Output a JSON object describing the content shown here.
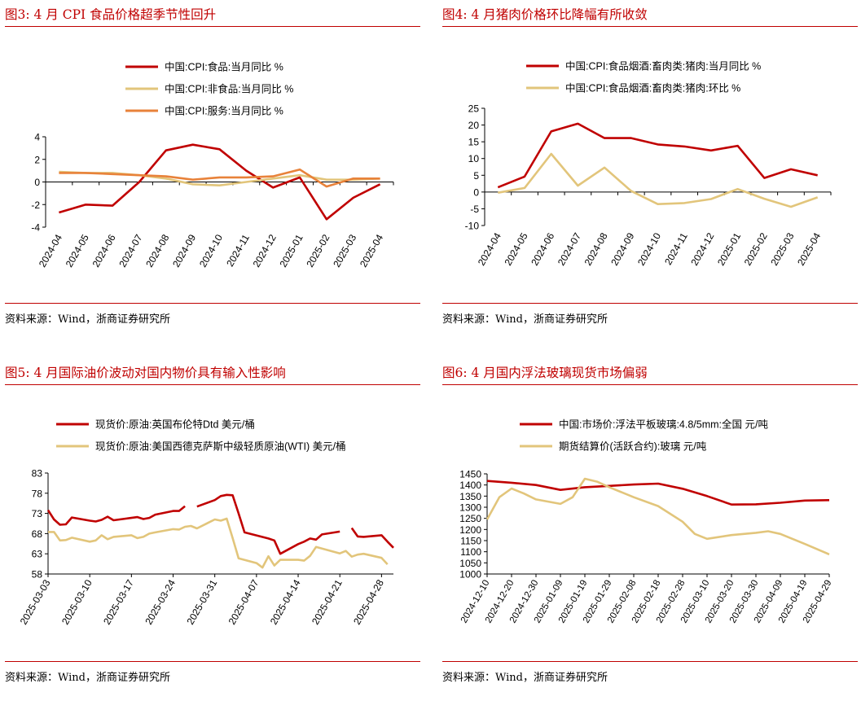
{
  "source_text": "资料来源：Wind，浙商证券研究所",
  "colors": {
    "accent_red": "#C00000",
    "line_red": "#C00000",
    "line_tan": "#E2C57B",
    "line_orange": "#E8823A"
  },
  "chart_data": [
    {
      "type": "line",
      "title": "图3:   4 月 CPI 食品价格超季节性回升",
      "categories": [
        "2024-04",
        "2024-05",
        "2024-06",
        "2024-07",
        "2024-08",
        "2024-09",
        "2024-10",
        "2024-11",
        "2024-12",
        "2025-01",
        "2025-02",
        "2025-03",
        "2025-04"
      ],
      "series": [
        {
          "name": "中国:CPI:食品:当月同比 %",
          "color": "#C00000",
          "values": [
            -2.7,
            -2.0,
            -2.1,
            0.0,
            2.8,
            3.3,
            2.9,
            1.0,
            -0.5,
            0.4,
            -3.3,
            -1.4,
            -0.2
          ]
        },
        {
          "name": "中国:CPI:非食品:当月同比 %",
          "color": "#E2C57B",
          "values": [
            0.9,
            0.8,
            0.8,
            0.6,
            0.3,
            -0.2,
            -0.3,
            0.0,
            0.3,
            0.6,
            0.2,
            0.2,
            0.3
          ]
        },
        {
          "name": "中国:CPI:服务:当月同比 %",
          "color": "#E8823A",
          "values": [
            0.8,
            0.8,
            0.7,
            0.6,
            0.5,
            0.2,
            0.4,
            0.4,
            0.5,
            1.1,
            -0.4,
            0.3,
            0.3
          ]
        }
      ],
      "ylim": [
        -4,
        4
      ],
      "yticks": [
        -4,
        -2,
        0,
        2,
        4
      ]
    },
    {
      "type": "line",
      "title": "图4:   4 月猪肉价格环比降幅有所收敛",
      "categories": [
        "2024-04",
        "2024-05",
        "2024-06",
        "2024-07",
        "2024-08",
        "2024-09",
        "2024-10",
        "2024-11",
        "2024-12",
        "2025-01",
        "2025-02",
        "2025-03",
        "2025-04"
      ],
      "series": [
        {
          "name": "中国:CPI:食品烟酒:畜肉类:猪肉:当月同比 %",
          "color": "#C00000",
          "values": [
            1.4,
            4.6,
            18.1,
            20.4,
            16.1,
            16.1,
            14.2,
            13.6,
            12.4,
            13.8,
            4.2,
            6.8,
            5.0
          ]
        },
        {
          "name": "中国:CPI:食品烟酒:畜肉类:猪肉:环比 %",
          "color": "#E2C57B",
          "values": [
            -0.2,
            1.2,
            11.4,
            1.9,
            7.3,
            0.3,
            -3.6,
            -3.3,
            -2.1,
            0.9,
            -2.0,
            -4.4,
            -1.6
          ]
        }
      ],
      "ylim": [
        -10,
        25
      ],
      "yticks": [
        -10,
        -5,
        0,
        5,
        10,
        15,
        20,
        25
      ]
    },
    {
      "type": "line",
      "title": "图5:   4 月国际油价波动对国内物价具有输入性影响",
      "x_tick_labels": [
        "2025-03-03",
        "2025-03-10",
        "2025-03-17",
        "2025-03-24",
        "2025-03-31",
        "2025-04-07",
        "2025-04-14",
        "2025-04-21",
        "2025-04-28"
      ],
      "x_start": "2025-03-03",
      "x_end": "2025-04-30",
      "series": [
        {
          "name": "现货价:原油:英国布伦特Dtd 美元/桶",
          "color": "#C00000",
          "segments": [
            [
              [
                "2025-03-03",
                73.8
              ],
              [
                "2025-03-04",
                71.5
              ],
              [
                "2025-03-05",
                70.2
              ],
              [
                "2025-03-06",
                70.3
              ],
              [
                "2025-03-07",
                72.0
              ],
              [
                "2025-03-10",
                71.2
              ],
              [
                "2025-03-11",
                71.0
              ],
              [
                "2025-03-12",
                71.4
              ],
              [
                "2025-03-13",
                72.2
              ],
              [
                "2025-03-14",
                71.3
              ],
              [
                "2025-03-17",
                71.9
              ],
              [
                "2025-03-18",
                72.1
              ],
              [
                "2025-03-19",
                71.6
              ],
              [
                "2025-03-20",
                71.9
              ],
              [
                "2025-03-21",
                72.7
              ],
              [
                "2025-03-24",
                73.6
              ],
              [
                "2025-03-25",
                73.6
              ],
              [
                "2025-03-26",
                74.8
              ]
            ],
            [
              [
                "2025-03-28",
                74.7
              ],
              [
                "2025-03-31",
                76.3
              ],
              [
                "2025-04-01",
                77.3
              ],
              [
                "2025-04-02",
                77.6
              ],
              [
                "2025-04-03",
                77.5
              ],
              [
                "2025-04-04",
                73.0
              ],
              [
                "2025-04-05",
                68.3
              ],
              [
                "2025-04-09",
                66.8
              ],
              [
                "2025-04-10",
                66.3
              ],
              [
                "2025-04-11",
                63.0
              ],
              [
                "2025-04-14",
                65.4
              ],
              [
                "2025-04-15",
                66.0
              ],
              [
                "2025-04-16",
                66.8
              ],
              [
                "2025-04-17",
                66.5
              ],
              [
                "2025-04-18",
                67.8
              ],
              [
                "2025-04-21",
                68.5
              ]
            ],
            [
              [
                "2025-04-23",
                69.4
              ],
              [
                "2025-04-24",
                67.3
              ],
              [
                "2025-04-25",
                67.2
              ],
              [
                "2025-04-28",
                67.6
              ],
              [
                "2025-04-29",
                66.0
              ],
              [
                "2025-04-30",
                64.5
              ]
            ]
          ]
        },
        {
          "name": "现货价:原油:美国西德克萨斯中级轻质原油(WTI) 美元/桶",
          "color": "#E2C57B",
          "segments": [
            [
              [
                "2025-03-03",
                68.4
              ],
              [
                "2025-03-04",
                68.4
              ],
              [
                "2025-03-05",
                66.3
              ],
              [
                "2025-03-06",
                66.4
              ],
              [
                "2025-03-07",
                67.0
              ],
              [
                "2025-03-10",
                66.0
              ],
              [
                "2025-03-11",
                66.3
              ],
              [
                "2025-03-12",
                67.6
              ],
              [
                "2025-03-13",
                66.6
              ],
              [
                "2025-03-14",
                67.2
              ],
              [
                "2025-03-17",
                67.6
              ],
              [
                "2025-03-18",
                66.9
              ],
              [
                "2025-03-19",
                67.2
              ],
              [
                "2025-03-20",
                68.0
              ],
              [
                "2025-03-21",
                68.3
              ],
              [
                "2025-03-24",
                69.1
              ],
              [
                "2025-03-25",
                69.0
              ],
              [
                "2025-03-26",
                69.7
              ],
              [
                "2025-03-27",
                69.9
              ],
              [
                "2025-03-28",
                69.3
              ],
              [
                "2025-03-31",
                71.5
              ],
              [
                "2025-04-01",
                71.2
              ],
              [
                "2025-04-02",
                71.7
              ],
              [
                "2025-04-03",
                66.9
              ],
              [
                "2025-04-04",
                61.9
              ],
              [
                "2025-04-07",
                60.7
              ],
              [
                "2025-04-08",
                59.6
              ],
              [
                "2025-04-09",
                62.4
              ],
              [
                "2025-04-10",
                60.1
              ],
              [
                "2025-04-11",
                61.5
              ],
              [
                "2025-04-14",
                61.5
              ],
              [
                "2025-04-15",
                61.3
              ],
              [
                "2025-04-16",
                62.5
              ],
              [
                "2025-04-17",
                64.7
              ],
              [
                "2025-04-21",
                63.1
              ],
              [
                "2025-04-22",
                63.7
              ],
              [
                "2025-04-23",
                62.3
              ],
              [
                "2025-04-24",
                62.8
              ],
              [
                "2025-04-25",
                63.0
              ],
              [
                "2025-04-28",
                62.0
              ],
              [
                "2025-04-29",
                60.4
              ]
            ]
          ]
        }
      ],
      "ylim": [
        58,
        83
      ],
      "yticks": [
        58,
        63,
        68,
        73,
        78,
        83
      ]
    },
    {
      "type": "line",
      "title": "图6:   4 月国内浮法玻璃现货市场偏弱",
      "x_tick_labels": [
        "2024-12-10",
        "2024-12-20",
        "2024-12-30",
        "2025-01-09",
        "2025-01-19",
        "2025-01-29",
        "2025-02-08",
        "2025-02-18",
        "2025-02-28",
        "2025-03-10",
        "2025-03-20",
        "2025-03-30",
        "2025-04-09",
        "2025-04-19",
        "2025-04-29"
      ],
      "x_start": "2024-12-10",
      "x_end": "2025-04-29",
      "series": [
        {
          "name": "中国:市场价:浮法平板玻璃:4.8/5mm:全国 元/吨",
          "color": "#C00000",
          "points": [
            [
              "2024-12-10",
              1418
            ],
            [
              "2024-12-20",
              1410
            ],
            [
              "2024-12-30",
              1400
            ],
            [
              "2025-01-09",
              1378
            ],
            [
              "2025-01-19",
              1390
            ],
            [
              "2025-01-29",
              1396
            ],
            [
              "2025-02-08",
              1402
            ],
            [
              "2025-02-18",
              1406
            ],
            [
              "2025-02-28",
              1383
            ],
            [
              "2025-03-10",
              1350
            ],
            [
              "2025-03-20",
              1312
            ],
            [
              "2025-03-30",
              1313
            ],
            [
              "2025-04-09",
              1320
            ],
            [
              "2025-04-19",
              1330
            ],
            [
              "2025-04-29",
              1332
            ]
          ]
        },
        {
          "name": "期货结算价(活跃合约):玻璃 元/吨",
          "color": "#E2C57B",
          "points": [
            [
              "2024-12-10",
              1245
            ],
            [
              "2024-12-15",
              1345
            ],
            [
              "2024-12-20",
              1384
            ],
            [
              "2024-12-25",
              1362
            ],
            [
              "2024-12-30",
              1335
            ],
            [
              "2025-01-09",
              1315
            ],
            [
              "2025-01-14",
              1345
            ],
            [
              "2025-01-19",
              1428
            ],
            [
              "2025-01-24",
              1415
            ],
            [
              "2025-01-29",
              1390
            ],
            [
              "2025-02-08",
              1345
            ],
            [
              "2025-02-18",
              1305
            ],
            [
              "2025-02-28",
              1235
            ],
            [
              "2025-03-05",
              1180
            ],
            [
              "2025-03-10",
              1158
            ],
            [
              "2025-03-20",
              1175
            ],
            [
              "2025-03-30",
              1185
            ],
            [
              "2025-04-04",
              1192
            ],
            [
              "2025-04-09",
              1180
            ],
            [
              "2025-04-19",
              1135
            ],
            [
              "2025-04-29",
              1088
            ]
          ]
        }
      ],
      "ylim": [
        1000,
        1450
      ],
      "yticks": [
        1000,
        1050,
        1100,
        1150,
        1200,
        1250,
        1300,
        1350,
        1400,
        1450
      ]
    }
  ]
}
